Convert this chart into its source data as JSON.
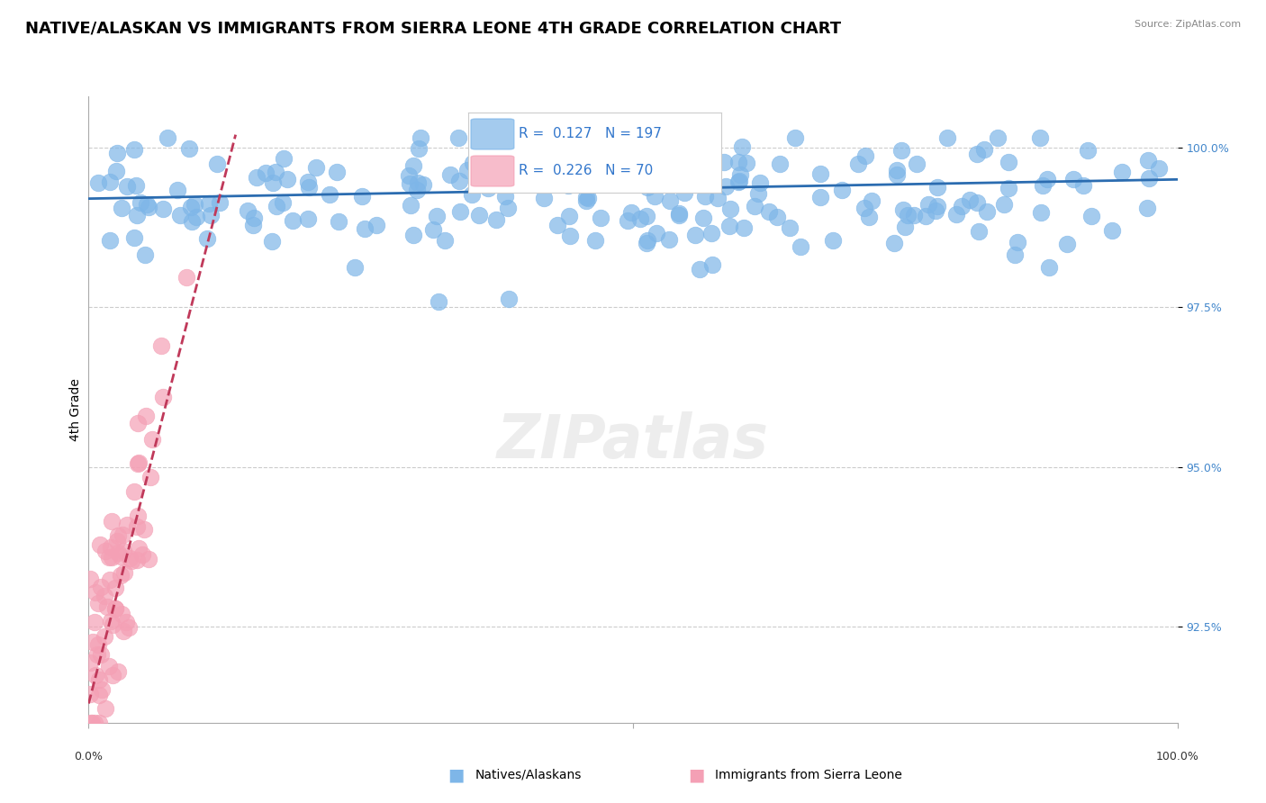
{
  "title": "NATIVE/ALASKAN VS IMMIGRANTS FROM SIERRA LEONE 4TH GRADE CORRELATION CHART",
  "source": "Source: ZipAtlas.com",
  "ylabel": "4th Grade",
  "xmin": 0.0,
  "xmax": 100.0,
  "ymin": 91.0,
  "ymax": 100.8,
  "yticks": [
    92.5,
    95.0,
    97.5,
    100.0
  ],
  "ytick_labels": [
    "92.5%",
    "95.0%",
    "97.5%",
    "100.0%"
  ],
  "blue_R": "0.127",
  "blue_N": "197",
  "pink_R": "0.226",
  "pink_N": "70",
  "blue_color": "#7EB6E8",
  "pink_color": "#F4A0B5",
  "blue_line_color": "#2B6CB0",
  "pink_line_color": "#C0395A",
  "background_color": "#FFFFFF",
  "title_fontsize": 13,
  "axis_label_fontsize": 10,
  "tick_fontsize": 9,
  "legend_fontsize": 11
}
